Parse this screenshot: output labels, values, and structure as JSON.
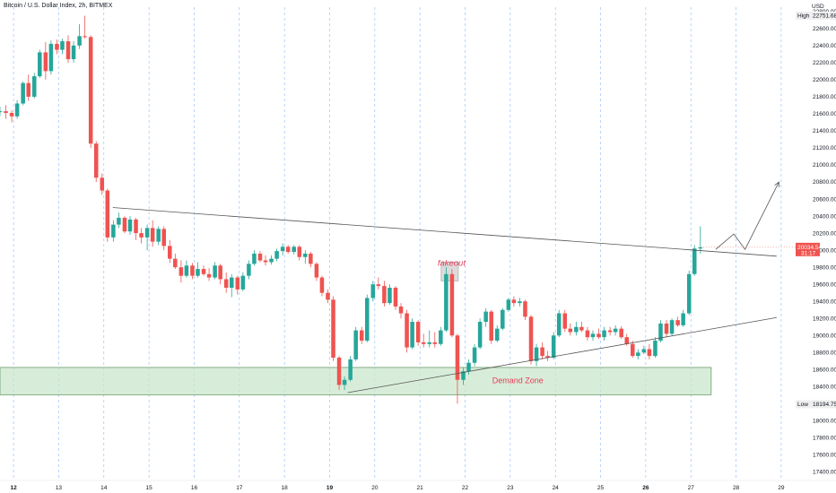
{
  "header": {
    "title": "Bitcoin / U.S. Dollar Index, 2h, BITMEX"
  },
  "chart_data": {
    "type": "candlestick",
    "title": "Bitcoin / U.S. Dollar Index, 2h, BITMEX",
    "ylabel": "USD",
    "ylim": [
      17300,
      22850
    ],
    "y_ticks": [
      "22800.00",
      "22600.00",
      "22400.00",
      "22200.00",
      "22000.00",
      "21800.00",
      "21600.00",
      "21400.00",
      "21200.00",
      "21000.00",
      "20800.00",
      "20600.00",
      "20400.00",
      "20200.00",
      "20000.00",
      "19800.00",
      "19600.00",
      "19400.00",
      "19200.00",
      "19000.00",
      "18800.00",
      "18600.00",
      "18400.00",
      "18200.00",
      "18000.00",
      "17800.00",
      "17600.00",
      "17400.00"
    ],
    "x_ticks": [
      "12",
      "13",
      "14",
      "15",
      "16",
      "17",
      "18",
      "19",
      "20",
      "21",
      "22",
      "23",
      "24",
      "25",
      "26",
      "27",
      "28",
      "29"
    ],
    "xlim": [
      11.7,
      29.3
    ],
    "bold_x_ticks": [
      "12",
      "19",
      "26"
    ],
    "high": {
      "label": "High",
      "value": "22751.68"
    },
    "low": {
      "label": "Low",
      "value": "18194.75"
    },
    "last_price": {
      "value": "20034.54",
      "countdown": "31:17"
    },
    "colors": {
      "up": "#26a69a",
      "down": "#ef5350",
      "zone_fill": "#c8e6c9",
      "zone_border": "#6b9b6b",
      "annotation": "#e53e5b",
      "grid": "#5b9cf6"
    },
    "annotations": [
      {
        "text": "fakeout",
        "x": 21.7,
        "y": 19820
      },
      {
        "text": "Demand Zone",
        "x": 22.6,
        "y": 18440
      }
    ],
    "demand_zone": {
      "x_start": 11.7,
      "x_end": 27.45,
      "y_low": 18305,
      "y_high": 18625
    },
    "resistance_line": {
      "x1": 14.2,
      "y1": 20500,
      "x2": 28.9,
      "y2": 19930
    },
    "support_line": {
      "x1": 19.4,
      "y1": 18330,
      "x2": 28.9,
      "y2": 19210
    },
    "fakeout_box": {
      "x_start": 21.47,
      "x_end": 21.85,
      "y_low": 19640,
      "y_high": 19860
    },
    "projection_path": [
      {
        "x": 27.55,
        "y": 20010
      },
      {
        "x": 27.95,
        "y": 20190
      },
      {
        "x": 28.2,
        "y": 20010
      },
      {
        "x": 28.95,
        "y": 20800
      }
    ],
    "candles": [
      {
        "x": 11.7,
        "o": 21620,
        "h": 21680,
        "l": 21580,
        "c": 21630
      },
      {
        "x": 11.83,
        "o": 21630,
        "h": 21700,
        "l": 21540,
        "c": 21610
      },
      {
        "x": 11.96,
        "o": 21610,
        "h": 21640,
        "l": 21500,
        "c": 21570
      },
      {
        "x": 12.08,
        "o": 21570,
        "h": 21760,
        "l": 21540,
        "c": 21720
      },
      {
        "x": 12.21,
        "o": 21720,
        "h": 21980,
        "l": 21700,
        "c": 21960
      },
      {
        "x": 12.33,
        "o": 21960,
        "h": 22060,
        "l": 21750,
        "c": 21800
      },
      {
        "x": 12.46,
        "o": 21800,
        "h": 22080,
        "l": 21780,
        "c": 22040
      },
      {
        "x": 12.58,
        "o": 22040,
        "h": 22350,
        "l": 22020,
        "c": 22320
      },
      {
        "x": 12.71,
        "o": 22320,
        "h": 22440,
        "l": 22000,
        "c": 22100
      },
      {
        "x": 12.83,
        "o": 22100,
        "h": 22460,
        "l": 22060,
        "c": 22420
      },
      {
        "x": 12.96,
        "o": 22420,
        "h": 22470,
        "l": 22300,
        "c": 22350
      },
      {
        "x": 13.08,
        "o": 22350,
        "h": 22480,
        "l": 22300,
        "c": 22450
      },
      {
        "x": 13.21,
        "o": 22450,
        "h": 22520,
        "l": 22200,
        "c": 22240
      },
      {
        "x": 13.33,
        "o": 22240,
        "h": 22450,
        "l": 22200,
        "c": 22400
      },
      {
        "x": 13.46,
        "o": 22400,
        "h": 22650,
        "l": 22360,
        "c": 22510
      },
      {
        "x": 13.58,
        "o": 22510,
        "h": 22750,
        "l": 22480,
        "c": 22500
      },
      {
        "x": 13.71,
        "o": 22500,
        "h": 22520,
        "l": 21200,
        "c": 21250
      },
      {
        "x": 13.83,
        "o": 21250,
        "h": 21280,
        "l": 20800,
        "c": 20850
      },
      {
        "x": 13.96,
        "o": 20850,
        "h": 20900,
        "l": 20650,
        "c": 20700
      },
      {
        "x": 14.08,
        "o": 20700,
        "h": 20720,
        "l": 20100,
        "c": 20150
      },
      {
        "x": 14.21,
        "o": 20150,
        "h": 20350,
        "l": 20100,
        "c": 20300
      },
      {
        "x": 14.33,
        "o": 20300,
        "h": 20440,
        "l": 20260,
        "c": 20380
      },
      {
        "x": 14.46,
        "o": 20380,
        "h": 20400,
        "l": 20200,
        "c": 20220
      },
      {
        "x": 14.58,
        "o": 20220,
        "h": 20400,
        "l": 20180,
        "c": 20360
      },
      {
        "x": 14.71,
        "o": 20360,
        "h": 20380,
        "l": 20120,
        "c": 20200
      },
      {
        "x": 14.83,
        "o": 20200,
        "h": 20260,
        "l": 20080,
        "c": 20150
      },
      {
        "x": 14.96,
        "o": 20150,
        "h": 20300,
        "l": 20000,
        "c": 20260
      },
      {
        "x": 15.08,
        "o": 20260,
        "h": 20350,
        "l": 20040,
        "c": 20100
      },
      {
        "x": 15.21,
        "o": 20100,
        "h": 20280,
        "l": 20060,
        "c": 20250
      },
      {
        "x": 15.33,
        "o": 20250,
        "h": 20280,
        "l": 20000,
        "c": 20050
      },
      {
        "x": 15.46,
        "o": 20050,
        "h": 20120,
        "l": 19850,
        "c": 19900
      },
      {
        "x": 15.58,
        "o": 19900,
        "h": 19960,
        "l": 19780,
        "c": 19800
      },
      {
        "x": 15.71,
        "o": 19800,
        "h": 19880,
        "l": 19620,
        "c": 19700
      },
      {
        "x": 15.83,
        "o": 19700,
        "h": 19880,
        "l": 19680,
        "c": 19820
      },
      {
        "x": 15.96,
        "o": 19820,
        "h": 19850,
        "l": 19660,
        "c": 19700
      },
      {
        "x": 16.08,
        "o": 19700,
        "h": 19860,
        "l": 19680,
        "c": 19780
      },
      {
        "x": 16.21,
        "o": 19780,
        "h": 19820,
        "l": 19700,
        "c": 19720
      },
      {
        "x": 16.33,
        "o": 19720,
        "h": 19790,
        "l": 19640,
        "c": 19680
      },
      {
        "x": 16.46,
        "o": 19680,
        "h": 19860,
        "l": 19660,
        "c": 19820
      },
      {
        "x": 16.58,
        "o": 19820,
        "h": 19840,
        "l": 19600,
        "c": 19660
      },
      {
        "x": 16.71,
        "o": 19660,
        "h": 19740,
        "l": 19500,
        "c": 19560
      },
      {
        "x": 16.83,
        "o": 19560,
        "h": 19720,
        "l": 19450,
        "c": 19680
      },
      {
        "x": 16.96,
        "o": 19680,
        "h": 19700,
        "l": 19480,
        "c": 19540
      },
      {
        "x": 17.08,
        "o": 19540,
        "h": 19740,
        "l": 19520,
        "c": 19700
      },
      {
        "x": 17.21,
        "o": 19700,
        "h": 19880,
        "l": 19660,
        "c": 19840
      },
      {
        "x": 17.33,
        "o": 19840,
        "h": 20000,
        "l": 19820,
        "c": 19960
      },
      {
        "x": 17.46,
        "o": 19960,
        "h": 19990,
        "l": 19860,
        "c": 19880
      },
      {
        "x": 17.58,
        "o": 19880,
        "h": 19940,
        "l": 19820,
        "c": 19860
      },
      {
        "x": 17.71,
        "o": 19860,
        "h": 19940,
        "l": 19830,
        "c": 19900
      },
      {
        "x": 17.83,
        "o": 19900,
        "h": 20020,
        "l": 19870,
        "c": 19990
      },
      {
        "x": 17.96,
        "o": 19990,
        "h": 20080,
        "l": 19940,
        "c": 20040
      },
      {
        "x": 18.08,
        "o": 20040,
        "h": 20060,
        "l": 19960,
        "c": 19980
      },
      {
        "x": 18.21,
        "o": 19980,
        "h": 20060,
        "l": 19950,
        "c": 20040
      },
      {
        "x": 18.33,
        "o": 20040,
        "h": 20060,
        "l": 19880,
        "c": 19920
      },
      {
        "x": 18.46,
        "o": 19920,
        "h": 20000,
        "l": 19840,
        "c": 19960
      },
      {
        "x": 18.58,
        "o": 19960,
        "h": 19980,
        "l": 19800,
        "c": 19840
      },
      {
        "x": 18.71,
        "o": 19840,
        "h": 19860,
        "l": 19640,
        "c": 19680
      },
      {
        "x": 18.83,
        "o": 19680,
        "h": 19700,
        "l": 19460,
        "c": 19500
      },
      {
        "x": 18.96,
        "o": 19500,
        "h": 19540,
        "l": 19380,
        "c": 19420
      },
      {
        "x": 19.08,
        "o": 19420,
        "h": 19460,
        "l": 18700,
        "c": 18740
      },
      {
        "x": 19.21,
        "o": 18740,
        "h": 18760,
        "l": 18360,
        "c": 18420
      },
      {
        "x": 19.33,
        "o": 18420,
        "h": 18520,
        "l": 18360,
        "c": 18480
      },
      {
        "x": 19.46,
        "o": 18480,
        "h": 18760,
        "l": 18460,
        "c": 18720
      },
      {
        "x": 19.58,
        "o": 18720,
        "h": 19100,
        "l": 18700,
        "c": 19060
      },
      {
        "x": 19.71,
        "o": 19060,
        "h": 19100,
        "l": 18900,
        "c": 18940
      },
      {
        "x": 19.83,
        "o": 18940,
        "h": 19480,
        "l": 18920,
        "c": 19440
      },
      {
        "x": 19.96,
        "o": 19440,
        "h": 19640,
        "l": 19400,
        "c": 19600
      },
      {
        "x": 20.08,
        "o": 19600,
        "h": 19680,
        "l": 19540,
        "c": 19580
      },
      {
        "x": 20.21,
        "o": 19580,
        "h": 19640,
        "l": 19340,
        "c": 19380
      },
      {
        "x": 20.33,
        "o": 19380,
        "h": 19600,
        "l": 19360,
        "c": 19560
      },
      {
        "x": 20.46,
        "o": 19560,
        "h": 19580,
        "l": 19300,
        "c": 19340
      },
      {
        "x": 20.58,
        "o": 19340,
        "h": 19380,
        "l": 19200,
        "c": 19260
      },
      {
        "x": 20.71,
        "o": 19260,
        "h": 19300,
        "l": 18800,
        "c": 18860
      },
      {
        "x": 20.83,
        "o": 18860,
        "h": 19200,
        "l": 18840,
        "c": 19160
      },
      {
        "x": 20.96,
        "o": 19160,
        "h": 19180,
        "l": 18880,
        "c": 18920
      },
      {
        "x": 21.08,
        "o": 18920,
        "h": 19020,
        "l": 18860,
        "c": 18900
      },
      {
        "x": 21.21,
        "o": 18900,
        "h": 19060,
        "l": 18860,
        "c": 18920
      },
      {
        "x": 21.33,
        "o": 18920,
        "h": 19040,
        "l": 18860,
        "c": 18900
      },
      {
        "x": 21.46,
        "o": 18900,
        "h": 19100,
        "l": 18880,
        "c": 19060
      },
      {
        "x": 21.58,
        "o": 19060,
        "h": 19800,
        "l": 19040,
        "c": 19720
      },
      {
        "x": 21.71,
        "o": 19720,
        "h": 19780,
        "l": 18980,
        "c": 19000
      },
      {
        "x": 21.83,
        "o": 19000,
        "h": 19020,
        "l": 18200,
        "c": 18480
      },
      {
        "x": 21.96,
        "o": 18480,
        "h": 18620,
        "l": 18420,
        "c": 18580
      },
      {
        "x": 22.08,
        "o": 18580,
        "h": 18720,
        "l": 18540,
        "c": 18680
      },
      {
        "x": 22.21,
        "o": 18680,
        "h": 18900,
        "l": 18640,
        "c": 18860
      },
      {
        "x": 22.33,
        "o": 18860,
        "h": 19200,
        "l": 18840,
        "c": 19160
      },
      {
        "x": 22.46,
        "o": 19160,
        "h": 19320,
        "l": 19100,
        "c": 19280
      },
      {
        "x": 22.58,
        "o": 19280,
        "h": 19300,
        "l": 18900,
        "c": 18940
      },
      {
        "x": 22.71,
        "o": 18940,
        "h": 19120,
        "l": 18920,
        "c": 19080
      },
      {
        "x": 22.83,
        "o": 19080,
        "h": 19320,
        "l": 19060,
        "c": 19300
      },
      {
        "x": 22.96,
        "o": 19300,
        "h": 19440,
        "l": 19280,
        "c": 19420
      },
      {
        "x": 23.08,
        "o": 19420,
        "h": 19460,
        "l": 19340,
        "c": 19380
      },
      {
        "x": 23.21,
        "o": 19380,
        "h": 19440,
        "l": 19340,
        "c": 19400
      },
      {
        "x": 23.33,
        "o": 19400,
        "h": 19420,
        "l": 19180,
        "c": 19220
      },
      {
        "x": 23.46,
        "o": 19220,
        "h": 19240,
        "l": 18660,
        "c": 18700
      },
      {
        "x": 23.58,
        "o": 18700,
        "h": 18900,
        "l": 18640,
        "c": 18860
      },
      {
        "x": 23.71,
        "o": 18860,
        "h": 18920,
        "l": 18720,
        "c": 18760
      },
      {
        "x": 23.83,
        "o": 18760,
        "h": 18820,
        "l": 18700,
        "c": 18740
      },
      {
        "x": 23.96,
        "o": 18740,
        "h": 19040,
        "l": 18720,
        "c": 19000
      },
      {
        "x": 24.08,
        "o": 19000,
        "h": 19300,
        "l": 18980,
        "c": 19260
      },
      {
        "x": 24.21,
        "o": 19260,
        "h": 19300,
        "l": 19040,
        "c": 19080
      },
      {
        "x": 24.33,
        "o": 19080,
        "h": 19140,
        "l": 19000,
        "c": 19040
      },
      {
        "x": 24.46,
        "o": 19040,
        "h": 19160,
        "l": 19000,
        "c": 19100
      },
      {
        "x": 24.58,
        "o": 19100,
        "h": 19160,
        "l": 19040,
        "c": 19060
      },
      {
        "x": 24.71,
        "o": 19060,
        "h": 19100,
        "l": 18940,
        "c": 18980
      },
      {
        "x": 24.83,
        "o": 18980,
        "h": 19060,
        "l": 18940,
        "c": 19020
      },
      {
        "x": 24.96,
        "o": 19020,
        "h": 19080,
        "l": 18960,
        "c": 18980
      },
      {
        "x": 25.08,
        "o": 18980,
        "h": 19100,
        "l": 18940,
        "c": 19060
      },
      {
        "x": 25.21,
        "o": 19060,
        "h": 19100,
        "l": 19000,
        "c": 19040
      },
      {
        "x": 25.33,
        "o": 19040,
        "h": 19120,
        "l": 19000,
        "c": 19080
      },
      {
        "x": 25.46,
        "o": 19080,
        "h": 19110,
        "l": 18960,
        "c": 18980
      },
      {
        "x": 25.58,
        "o": 18980,
        "h": 19020,
        "l": 18880,
        "c": 18900
      },
      {
        "x": 25.71,
        "o": 18900,
        "h": 18940,
        "l": 18740,
        "c": 18760
      },
      {
        "x": 25.83,
        "o": 18760,
        "h": 18840,
        "l": 18720,
        "c": 18800
      },
      {
        "x": 25.96,
        "o": 18800,
        "h": 18880,
        "l": 18780,
        "c": 18840
      },
      {
        "x": 26.08,
        "o": 18840,
        "h": 18900,
        "l": 18720,
        "c": 18760
      },
      {
        "x": 26.21,
        "o": 18760,
        "h": 18980,
        "l": 18740,
        "c": 18940
      },
      {
        "x": 26.33,
        "o": 18940,
        "h": 19180,
        "l": 18920,
        "c": 19140
      },
      {
        "x": 26.46,
        "o": 19140,
        "h": 19180,
        "l": 18980,
        "c": 19020
      },
      {
        "x": 26.58,
        "o": 19020,
        "h": 19200,
        "l": 19000,
        "c": 19180
      },
      {
        "x": 26.71,
        "o": 19180,
        "h": 19220,
        "l": 19100,
        "c": 19120
      },
      {
        "x": 26.83,
        "o": 19120,
        "h": 19300,
        "l": 19100,
        "c": 19260
      },
      {
        "x": 26.96,
        "o": 19260,
        "h": 19760,
        "l": 19240,
        "c": 19720
      },
      {
        "x": 27.08,
        "o": 19720,
        "h": 20060,
        "l": 19700,
        "c": 20020
      },
      {
        "x": 27.21,
        "o": 20020,
        "h": 20280,
        "l": 19960,
        "c": 20034
      }
    ]
  }
}
